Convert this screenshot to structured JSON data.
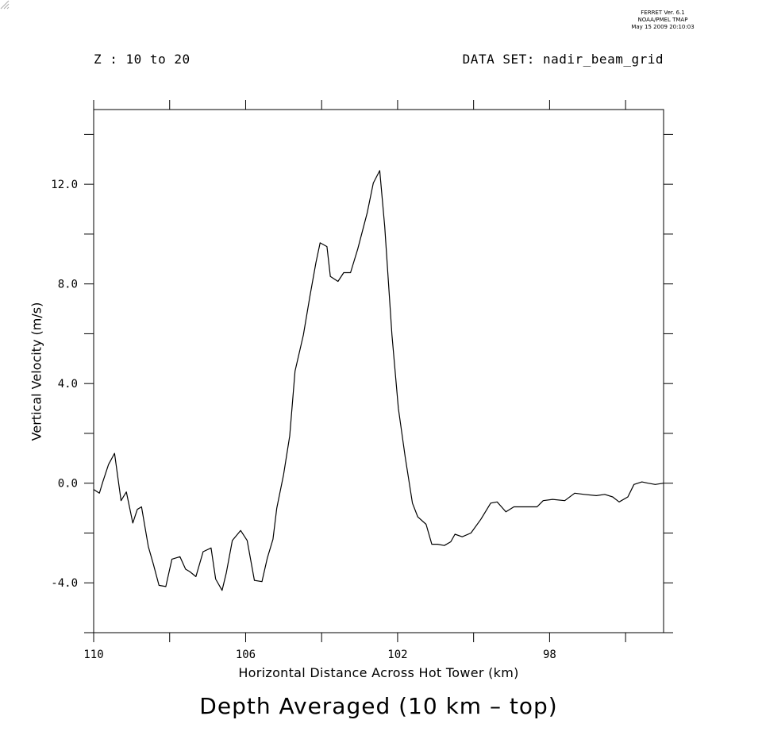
{
  "header": {
    "ferret_lines": [
      "FERRET Ver. 6.1",
      "NOAA/PMEL TMAP",
      "May 15 2009 20:10:03"
    ],
    "z_range": "Z : 10 to 20",
    "dataset": "DATA SET: nadir_beam_grid"
  },
  "chart_data": {
    "type": "line",
    "title": "Depth Averaged (10 km – top)",
    "xlabel": "Horizontal Distance Across Hot Tower (km)",
    "ylabel": "Vertical Velocity (m/s)",
    "xlim": [
      110,
      95
    ],
    "ylim": [
      -6,
      15
    ],
    "x_reversed": true,
    "x_ticks": [
      110,
      106,
      102,
      98
    ],
    "x_tick_labels": [
      "110",
      "106",
      "102",
      "98"
    ],
    "y_ticks": [
      -4,
      0,
      4,
      8,
      12
    ],
    "y_tick_labels": [
      "-4.0",
      "0.0",
      "4.0",
      "8.0",
      "12.0"
    ],
    "grid": false,
    "series": [
      {
        "x": [
          110.0,
          109.85,
          109.76,
          109.61,
          109.45,
          109.28,
          109.14,
          108.97,
          108.85,
          108.74,
          108.56,
          108.43,
          108.28,
          108.1,
          107.94,
          107.73,
          107.58,
          107.47,
          107.31,
          107.12,
          106.91,
          106.79,
          106.62,
          106.51,
          106.35,
          106.13,
          105.96,
          105.77,
          105.57,
          105.43,
          105.28,
          105.18,
          105.0,
          104.84,
          104.7,
          104.48,
          104.31,
          104.15,
          104.04,
          103.86,
          103.77,
          103.57,
          103.42,
          103.24,
          103.05,
          102.8,
          102.64,
          102.47,
          102.34,
          102.15,
          101.98,
          101.8,
          101.61,
          101.47,
          101.25,
          101.1,
          100.95,
          100.77,
          100.6,
          100.49,
          100.3,
          100.07,
          99.81,
          99.55,
          99.38,
          99.15,
          98.94,
          98.78,
          98.58,
          98.33,
          98.17,
          97.92,
          97.6,
          97.34,
          97.09,
          96.77,
          96.55,
          96.34,
          96.17,
          95.94,
          95.78,
          95.57,
          95.41,
          95.22,
          95.0
        ],
        "y": [
          -0.25,
          -0.4,
          0.05,
          0.75,
          1.2,
          -0.7,
          -0.35,
          -1.6,
          -1.05,
          -0.95,
          -2.55,
          -3.25,
          -4.1,
          -4.15,
          -3.05,
          -2.95,
          -3.45,
          -3.55,
          -3.75,
          -2.75,
          -2.6,
          -3.85,
          -4.3,
          -3.6,
          -2.3,
          -1.9,
          -2.3,
          -3.9,
          -3.95,
          -3.0,
          -2.25,
          -1.0,
          0.35,
          1.9,
          4.5,
          5.95,
          7.5,
          8.85,
          9.65,
          9.5,
          8.3,
          8.1,
          8.45,
          8.45,
          9.4,
          10.85,
          12.05,
          12.55,
          10.3,
          5.95,
          3.0,
          1.05,
          -0.8,
          -1.35,
          -1.65,
          -2.45,
          -2.45,
          -2.5,
          -2.35,
          -2.05,
          -2.15,
          -2.0,
          -1.45,
          -0.8,
          -0.75,
          -1.15,
          -0.95,
          -0.95,
          -0.95,
          -0.95,
          -0.7,
          -0.65,
          -0.7,
          -0.4,
          -0.45,
          -0.5,
          -0.45,
          -0.55,
          -0.75,
          -0.55,
          -0.05,
          0.05,
          0.0,
          -0.05,
          0.0
        ]
      }
    ]
  }
}
